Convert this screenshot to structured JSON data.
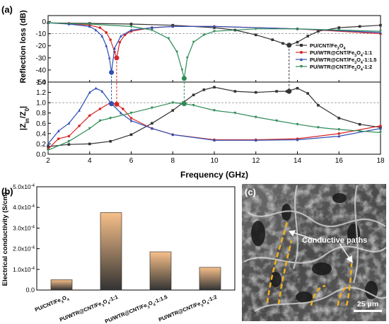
{
  "panel_a": {
    "label": "(a)",
    "xlabel": "Frequency (GHz)"
  },
  "panel_b": {
    "label": "(b)",
    "ylabel": "Electrical conductivity (S/cm)"
  },
  "panel_c": {
    "label": "(c)",
    "annotation": "Conductive paths",
    "scalebar": "25 μm"
  },
  "colors": {
    "PU/CNT/Fe3O4": "#333333",
    "PU/WTR@CNT/Fe3O4-1:1": "#d62728",
    "PU/WTR@CNT/Fe3O4-1:1.5": "#2f4fb5",
    "PU/WTR@CNT/Fe3O4-1:2": "#2e8b57",
    "bar_top": "#f7c08a",
    "bar_bottom": "#333333",
    "path": "#f0b020"
  },
  "chart_data": [
    {
      "type": "line",
      "panel": "(a) top",
      "xlabel": "Frequency (GHz)",
      "ylabel": "Reflection loss (dB)",
      "xlim": [
        2,
        18
      ],
      "ylim": [
        -50,
        5
      ],
      "yticks": [
        0,
        -10,
        -20,
        -30,
        -40,
        -50
      ],
      "reference_line": -10,
      "series": [
        {
          "name": "PU/CNT/Fe3O4",
          "x": [
            2,
            4,
            6,
            8,
            10,
            11,
            12,
            12.8,
            13.3,
            13.6,
            14,
            14.5,
            15,
            16,
            17,
            18
          ],
          "y": [
            -1,
            -1.5,
            -2,
            -3,
            -5,
            -7,
            -11,
            -15,
            -18,
            -19.5,
            -17,
            -12,
            -8,
            -5,
            -4,
            -3
          ]
        },
        {
          "name": "PU/WTR@CNT/Fe3O4-1:1",
          "x": [
            2,
            3,
            4,
            4.5,
            4.8,
            5.0,
            5.2,
            5.3,
            5.45,
            5.7,
            6,
            7,
            8,
            10,
            14,
            18
          ],
          "y": [
            -1,
            -1.5,
            -3,
            -5,
            -9,
            -15,
            -25,
            -30,
            -17,
            -11,
            -8,
            -5,
            -4,
            -4,
            -6,
            -10
          ]
        },
        {
          "name": "PU/WTR@CNT/Fe3O4-1:1.5",
          "x": [
            2,
            3,
            4,
            4.3,
            4.6,
            4.8,
            4.95,
            5.05,
            5.2,
            5.5,
            6,
            7,
            8,
            10,
            14,
            18
          ],
          "y": [
            -1,
            -2,
            -4,
            -7,
            -12,
            -20,
            -30,
            -42,
            -22,
            -12,
            -7,
            -5,
            -4,
            -4,
            -6,
            -9
          ]
        },
        {
          "name": "PU/WTR@CNT/Fe3O4-1:2",
          "x": [
            2,
            4,
            6,
            7,
            7.8,
            8.2,
            8.45,
            8.55,
            8.7,
            9,
            9.5,
            10,
            12,
            14,
            16,
            18
          ],
          "y": [
            -1,
            -2,
            -4,
            -7,
            -14,
            -25,
            -40,
            -47,
            -30,
            -17,
            -11,
            -8,
            -6,
            -6,
            -7,
            -8
          ]
        }
      ],
      "markers": [
        {
          "series": "PU/CNT/Fe3O4",
          "x": 13.6,
          "y": -19.5
        },
        {
          "series": "PU/WTR@CNT/Fe3O4-1:1",
          "x": 5.3,
          "y": -30
        },
        {
          "series": "PU/WTR@CNT/Fe3O4-1:1.5",
          "x": 5.05,
          "y": -42
        },
        {
          "series": "PU/WTR@CNT/Fe3O4-1:2",
          "x": 8.55,
          "y": -47
        }
      ]
    },
    {
      "type": "line",
      "panel": "(a) bottom",
      "xlabel": "Frequency (GHz)",
      "ylabel": "|Zin/Z0|",
      "xlim": [
        2,
        18
      ],
      "ylim": [
        0,
        1.4
      ],
      "xticks": [
        2,
        4,
        6,
        8,
        10,
        12,
        14,
        16,
        18
      ],
      "yticks": [
        0.0,
        0.2,
        0.4,
        0.6,
        0.8,
        1.0,
        1.2,
        1.4
      ],
      "reference_line": 1.0,
      "series": [
        {
          "name": "PU/CNT/Fe3O4",
          "x": [
            2,
            3,
            4,
            5,
            6,
            7,
            8,
            8.5,
            9,
            9.5,
            10,
            11,
            12,
            13,
            13.5,
            14,
            14.5,
            15,
            16,
            17,
            18
          ],
          "y": [
            0.15,
            0.19,
            0.2,
            0.25,
            0.38,
            0.6,
            0.85,
            1.0,
            1.15,
            1.25,
            1.3,
            1.22,
            1.2,
            1.22,
            1.22,
            1.28,
            1.18,
            0.95,
            0.7,
            0.58,
            0.52
          ]
        },
        {
          "name": "PU/WTR@CNT/Fe3O4-1:1",
          "x": [
            2,
            2.5,
            3,
            3.5,
            4,
            4.5,
            5,
            5.3,
            5.6,
            6,
            7,
            8,
            10,
            12,
            14,
            16,
            18
          ],
          "y": [
            0.1,
            0.3,
            0.35,
            0.55,
            0.75,
            0.88,
            1.0,
            0.97,
            0.88,
            0.7,
            0.5,
            0.38,
            0.28,
            0.28,
            0.3,
            0.4,
            0.55
          ]
        },
        {
          "name": "PU/WTR@CNT/Fe3O4-1:1.5",
          "x": [
            2,
            2.5,
            3,
            3.5,
            4,
            4.3,
            4.6,
            5.05,
            5.5,
            6,
            7,
            8,
            10,
            12,
            14,
            16,
            18
          ],
          "y": [
            0.2,
            0.45,
            0.6,
            0.85,
            1.2,
            1.28,
            1.22,
            0.98,
            0.8,
            0.65,
            0.5,
            0.38,
            0.27,
            0.27,
            0.28,
            0.35,
            0.5
          ]
        },
        {
          "name": "PU/WTR@CNT/Fe3O4-1:2",
          "x": [
            2,
            3,
            4,
            4.5,
            5,
            6,
            7,
            8,
            8.55,
            9,
            10,
            11,
            12,
            13,
            14,
            15,
            16,
            17,
            18
          ],
          "y": [
            0.08,
            0.25,
            0.5,
            0.65,
            0.7,
            0.8,
            0.9,
            1.0,
            0.98,
            0.95,
            0.85,
            0.8,
            0.72,
            0.65,
            0.58,
            0.52,
            0.48,
            0.45,
            0.42
          ]
        }
      ],
      "markers": [
        {
          "series": "PU/CNT/Fe3O4",
          "x": 13.6,
          "y": 1.22
        },
        {
          "series": "PU/WTR@CNT/Fe3O4-1:1",
          "x": 5.3,
          "y": 0.97
        },
        {
          "series": "PU/WTR@CNT/Fe3O4-1:1.5",
          "x": 5.05,
          "y": 0.98
        },
        {
          "series": "PU/WTR@CNT/Fe3O4-1:2",
          "x": 8.55,
          "y": 0.98
        }
      ]
    },
    {
      "type": "bar",
      "panel": "(b)",
      "ylabel": "Electrical conductivity (S/cm)",
      "ylim": [
        0,
        0.0005
      ],
      "yticks": [
        "0.0",
        "1.0x10-4",
        "2.0x10-4",
        "3.0x10-4",
        "4.0x10-4",
        "5.0x10-4"
      ],
      "categories": [
        "PU/CNT/Fe3O4",
        "PU/WTR@CNT/Fe3O4-1:1",
        "PU/WTR@CNT/Fe3O4-1:1.5",
        "PU/WTR@CNT/Fe3O4-1:2"
      ],
      "values": [
        5e-05,
        0.000375,
        0.000185,
        0.00011
      ]
    }
  ]
}
